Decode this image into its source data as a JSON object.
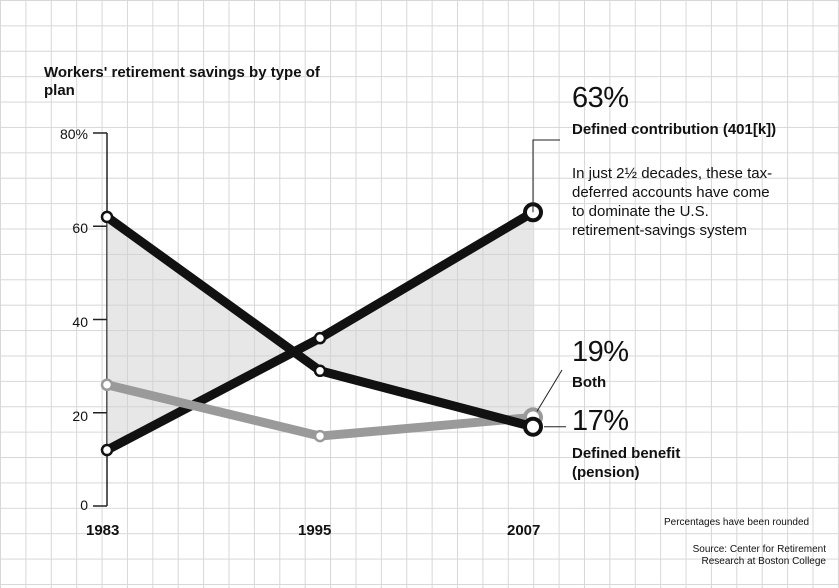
{
  "chart_data": {
    "type": "line",
    "title": "Workers' retirement savings by type of plan",
    "categories": [
      "1983",
      "1995",
      "2007"
    ],
    "ylim": [
      0,
      80
    ],
    "yticks": [
      "80%",
      "60",
      "40",
      "20",
      "0"
    ],
    "yticks_values": [
      80,
      60,
      40,
      20,
      0
    ],
    "grid": true,
    "series": [
      {
        "name": "Defined contribution (401[k])",
        "values": [
          12,
          36,
          63
        ],
        "color": "#111111"
      },
      {
        "name": "Both",
        "values": [
          26,
          15,
          19
        ],
        "color": "#9a9a9a"
      },
      {
        "name": "Defined benefit (pension)",
        "values": [
          62,
          29,
          17
        ],
        "color": "#111111"
      }
    ],
    "end_labels": {
      "dc": {
        "pct": "63%",
        "name": "Defined contribution (401[k])",
        "note": "In just 2½ decades, these tax-deferred accounts have come to dominate the U.S. retirement-savings system"
      },
      "both": {
        "pct": "19%",
        "name": "Both"
      },
      "db": {
        "pct": "17%",
        "name": "Defined benefit (pension)"
      }
    },
    "footnote": "Percentages have been rounded",
    "source": "Source: Center for Retirement Research at Boston College"
  },
  "colors": {
    "line_dark": "#111111",
    "line_gray": "#9a9a9a",
    "shade": "#cfcfcf"
  }
}
